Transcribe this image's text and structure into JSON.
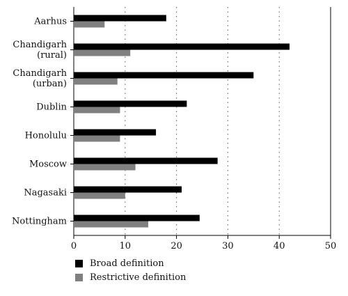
{
  "chart_data": {
    "type": "bar",
    "orientation": "horizontal",
    "categories": [
      [
        "Aarhus"
      ],
      [
        "Chandigarh",
        "(rural)"
      ],
      [
        "Chandigarh",
        "(urban)"
      ],
      [
        "Dublin"
      ],
      [
        "Honolulu"
      ],
      [
        "Moscow"
      ],
      [
        "Nagasaki"
      ],
      [
        "Nottingham"
      ]
    ],
    "series": [
      {
        "name": "Broad definition",
        "color": "#000000",
        "values": [
          18,
          42,
          35,
          22,
          16,
          28,
          21,
          24.5
        ]
      },
      {
        "name": "Restrictive definition",
        "color": "#808080",
        "values": [
          6,
          11,
          8.5,
          9,
          9,
          12,
          10,
          14.5
        ]
      }
    ],
    "xlim": [
      0,
      50
    ],
    "xticks": [
      0,
      10,
      20,
      30,
      40,
      50
    ],
    "grid": "dotted vertical",
    "legend_position": "bottom"
  }
}
